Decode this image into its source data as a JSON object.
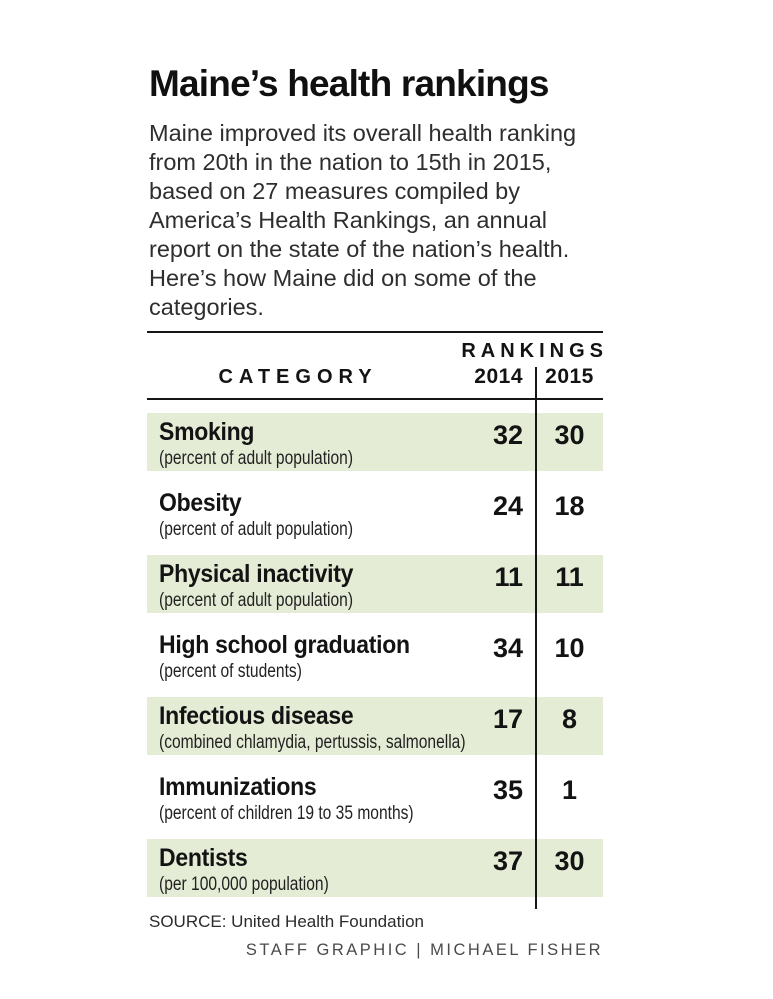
{
  "title": "Maine’s health rankings",
  "intro": "Maine improved its overall health ranking from 20th in the nation to 15th in 2015, based on 27 measures compiled by America’s Health Rankings, an annual report on the state of the nation’s health. Here’s how Maine did on some of the categories.",
  "table": {
    "rankings_label": "RANKINGS",
    "category_label": "CATEGORY",
    "year_columns": [
      "2014",
      "2015"
    ],
    "rows": [
      {
        "category": "Smoking",
        "note": "(percent of adult population)",
        "rank_2014": "32",
        "rank_2015": "30",
        "highlighted": true
      },
      {
        "category": "Obesity",
        "note": "(percent of adult population)",
        "rank_2014": "24",
        "rank_2015": "18",
        "highlighted": false
      },
      {
        "category": "Physical inactivity",
        "note": "(percent of adult population)",
        "rank_2014": "11",
        "rank_2015": "11",
        "highlighted": true
      },
      {
        "category": "High school graduation",
        "note": "(percent of students)",
        "rank_2014": "34",
        "rank_2015": "10",
        "highlighted": false
      },
      {
        "category": "Infectious disease",
        "note": "(combined chlamydia, pertussis, salmonella)",
        "rank_2014": "17",
        "rank_2015": "8",
        "highlighted": true
      },
      {
        "category": "Immunizations",
        "note": "(percent of children 19 to 35 months)",
        "rank_2014": "35",
        "rank_2015": "1",
        "highlighted": false
      },
      {
        "category": "Dentists",
        "note": "(per 100,000 population)",
        "rank_2014": "37",
        "rank_2015": "30",
        "highlighted": true
      }
    ]
  },
  "footer": {
    "source": "SOURCE: United Health Foundation",
    "credit": "STAFF GRAPHIC | MICHAEL FISHER"
  },
  "colors": {
    "highlight_green": "#e4ecd5",
    "rule_black": "#161616",
    "credit_gray": "#4a4a4c"
  },
  "chart_data": {
    "type": "table",
    "title": "Maine’s health rankings",
    "subtitle": "Maine improved its overall health ranking from 20th in the nation to 15th in 2015, based on 27 measures compiled by America’s Health Rankings, an annual report on the state of the nation’s health.",
    "columns": [
      "CATEGORY",
      "2014",
      "2015"
    ],
    "rows": [
      [
        "Smoking (percent of adult population)",
        32,
        30
      ],
      [
        "Obesity (percent of adult population)",
        24,
        18
      ],
      [
        "Physical inactivity (percent of adult population)",
        11,
        11
      ],
      [
        "High school graduation (percent of students)",
        34,
        10
      ],
      [
        "Infectious disease (combined chlamydia, pertussis, salmonella)",
        17,
        8
      ],
      [
        "Immunizations (percent of children 19 to 35 months)",
        35,
        1
      ],
      [
        "Dentists (per 100,000 population)",
        37,
        30
      ]
    ],
    "source": "United Health Foundation",
    "credit": "STAFF GRAPHIC | MICHAEL FISHER"
  }
}
